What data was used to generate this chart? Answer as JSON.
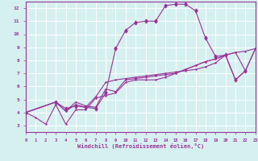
{
  "title": "",
  "xlabel": "Windchill (Refroidissement éolien,°C)",
  "ylabel": "",
  "bg_color": "#d6f0f0",
  "line_color": "#993399",
  "grid_color": "#ffffff",
  "spine_color": "#993399",
  "xlim": [
    0,
    23
  ],
  "ylim": [
    2.5,
    12.5
  ],
  "xticks": [
    0,
    1,
    2,
    3,
    4,
    5,
    6,
    7,
    8,
    9,
    10,
    11,
    12,
    13,
    14,
    15,
    16,
    17,
    18,
    19,
    20,
    21,
    22,
    23
  ],
  "yticks": [
    3,
    4,
    5,
    6,
    7,
    8,
    9,
    10,
    11,
    12
  ],
  "series": [
    [
      [
        0,
        1,
        2,
        3,
        4,
        5,
        6,
        7,
        8,
        9,
        10,
        11,
        12,
        13,
        14,
        15,
        16,
        17,
        18,
        19,
        20,
        21,
        22,
        23
      ],
      [
        4.0,
        3.6,
        3.1,
        4.6,
        3.1,
        4.2,
        4.2,
        5.1,
        5.3,
        5.5,
        6.3,
        6.5,
        6.5,
        6.5,
        6.7,
        7.0,
        7.3,
        7.6,
        7.9,
        8.1,
        8.4,
        8.6,
        8.7,
        8.9
      ]
    ],
    [
      [
        0,
        3,
        4,
        5,
        6,
        7,
        8,
        9,
        10,
        11,
        12,
        13,
        14,
        15,
        16,
        17,
        18,
        19,
        20,
        21,
        22
      ],
      [
        4.0,
        4.8,
        4.3,
        4.5,
        4.4,
        4.3,
        5.5,
        8.9,
        10.3,
        10.9,
        11.0,
        11.0,
        12.2,
        12.3,
        12.3,
        11.8,
        9.7,
        8.3,
        8.4,
        6.5,
        7.2
      ]
    ],
    [
      [
        0,
        3,
        4,
        5,
        6,
        7,
        8,
        9,
        10,
        11,
        12,
        13,
        14,
        15,
        16,
        17,
        18,
        19,
        20,
        21,
        22,
        23
      ],
      [
        4.0,
        4.8,
        4.1,
        4.6,
        4.4,
        5.2,
        6.3,
        6.5,
        6.6,
        6.7,
        6.8,
        6.9,
        7.0,
        7.1,
        7.2,
        7.3,
        7.5,
        7.8,
        8.4,
        8.6,
        7.2,
        8.9
      ]
    ],
    [
      [
        0,
        3,
        4,
        5,
        6,
        7,
        8,
        9,
        10,
        11,
        12,
        13,
        14,
        15,
        16,
        17,
        18,
        19,
        20,
        21,
        22,
        23
      ],
      [
        4.0,
        4.8,
        4.1,
        4.8,
        4.5,
        4.4,
        5.8,
        5.6,
        6.5,
        6.6,
        6.7,
        6.8,
        6.9,
        7.0,
        7.3,
        7.6,
        7.9,
        8.1,
        8.4,
        6.5,
        7.2,
        8.9
      ]
    ]
  ]
}
